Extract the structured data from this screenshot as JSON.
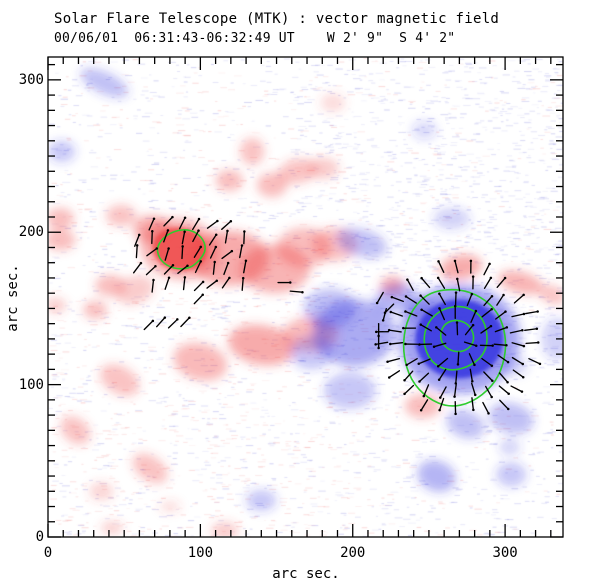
{
  "chart_data": {
    "type": "heatmap",
    "title": "Solar Flare Telescope (MTK) : vector magnetic field",
    "subtitle": "00/06/01  06:31:43-06:32:49 UT    W 2' 9\"  S 4' 2\"",
    "xlabel": "arc sec.",
    "ylabel": "arc sec.",
    "xlim": [
      0,
      338
    ],
    "ylim": [
      0,
      315
    ],
    "xticks": [
      0,
      100,
      200,
      300
    ],
    "yticks": [
      0,
      100,
      200,
      300
    ],
    "minor_tick_step": 10,
    "grid": false,
    "colors": {
      "positive_polarity": "#ee4444",
      "negative_polarity": "#3232e0",
      "contour": "#2ecc2e",
      "vector": "#000000",
      "axis": "#000000",
      "background": "#ffffff",
      "noise_blue": "#8c8ce1",
      "noise_pink": "#f29696"
    },
    "region_format": [
      "x_arcsec",
      "y_arcsec",
      "rx_arcsec",
      "ry_arcsec",
      "rotation_deg",
      "intensity"
    ],
    "positive_regions": [
      [
        86.5,
        189,
        18,
        14,
        -10,
        0.92
      ],
      [
        86.5,
        189,
        26,
        20,
        -10,
        0.45
      ],
      [
        68,
        202,
        12,
        9,
        0,
        0.5
      ],
      [
        48,
        211,
        10,
        7,
        0,
        0.35
      ],
      [
        8,
        209,
        9,
        7,
        0,
        0.4
      ],
      [
        8,
        195,
        10,
        7,
        0,
        0.4
      ],
      [
        119,
        183,
        26,
        18,
        0,
        0.5
      ],
      [
        149,
        176,
        23,
        16,
        0,
        0.45
      ],
      [
        168,
        190,
        18,
        13,
        0,
        0.4
      ],
      [
        188,
        192,
        15,
        11,
        0,
        0.35
      ],
      [
        57,
        162,
        13,
        9,
        20,
        0.3
      ],
      [
        41,
        165,
        10,
        7,
        0,
        0.4
      ],
      [
        31,
        149,
        8,
        6,
        0,
        0.38
      ],
      [
        5,
        152,
        7,
        5,
        0,
        0.3
      ],
      [
        119,
        234,
        9,
        7,
        0,
        0.4
      ],
      [
        134,
        253,
        8,
        9,
        0,
        0.35
      ],
      [
        147,
        231,
        10,
        8,
        0,
        0.4
      ],
      [
        164,
        240,
        13,
        8,
        10,
        0.35
      ],
      [
        181,
        242,
        10,
        7,
        0,
        0.3
      ],
      [
        187,
        285,
        8,
        6,
        0,
        0.22
      ],
      [
        47,
        103,
        14,
        9,
        -30,
        0.35
      ],
      [
        100,
        115,
        18,
        12,
        -15,
        0.42
      ],
      [
        140,
        126,
        22,
        13,
        -10,
        0.5
      ],
      [
        172,
        133,
        18,
        11,
        0,
        0.42
      ],
      [
        18,
        70,
        11,
        8,
        -40,
        0.35
      ],
      [
        67,
        45,
        13,
        8,
        -35,
        0.35
      ],
      [
        35,
        30,
        8,
        6,
        0,
        0.25
      ],
      [
        116,
        4,
        9,
        6,
        0,
        0.3
      ],
      [
        42,
        6,
        7,
        4,
        0,
        0.3
      ],
      [
        80,
        20,
        7,
        4,
        0,
        0.18
      ],
      [
        246,
        86,
        12,
        8,
        0,
        0.4
      ],
      [
        226,
        165,
        8,
        6,
        0,
        0.5
      ],
      [
        271,
        177,
        14,
        8,
        10,
        0.5
      ],
      [
        310,
        167,
        15,
        7,
        -15,
        0.45
      ],
      [
        331,
        159,
        9,
        6,
        -20,
        0.35
      ]
    ],
    "negative_regions": [
      [
        270,
        130,
        40,
        36,
        0,
        0.5
      ],
      [
        270,
        130,
        29,
        26,
        0,
        0.95
      ],
      [
        201,
        134,
        27,
        22,
        0,
        0.45
      ],
      [
        185,
        150,
        17,
        13,
        0,
        0.35
      ],
      [
        228,
        157,
        14,
        9,
        15,
        0.4
      ],
      [
        244,
        149,
        11,
        8,
        0,
        0.32
      ],
      [
        198,
        96,
        17,
        12,
        0,
        0.3
      ],
      [
        173,
        121,
        14,
        11,
        0,
        0.3
      ],
      [
        206,
        193,
        17,
        9,
        -15,
        0.35
      ],
      [
        265,
        209,
        12,
        7,
        0,
        0.25
      ],
      [
        37,
        298,
        17,
        7,
        -25,
        0.35
      ],
      [
        9,
        253,
        9,
        7,
        0,
        0.3
      ],
      [
        247,
        267,
        8,
        6,
        0,
        0.2
      ],
      [
        274,
        74,
        13,
        9,
        -20,
        0.35
      ],
      [
        304,
        78,
        15,
        10,
        -15,
        0.35
      ],
      [
        255,
        40,
        13,
        10,
        -20,
        0.4
      ],
      [
        304,
        41,
        10,
        8,
        0,
        0.3
      ],
      [
        303,
        59,
        7,
        5,
        0,
        0.25
      ],
      [
        140,
        24,
        10,
        7,
        0,
        0.3
      ],
      [
        334,
        130,
        10,
        14,
        0,
        0.25
      ],
      [
        306,
        112,
        9,
        6,
        0,
        0.22
      ]
    ],
    "contour_levels": [
      {
        "name": "left-spot",
        "points": [
          [
            104,
            189
          ],
          [
            101,
            197
          ],
          [
            93,
            202
          ],
          [
            83,
            201
          ],
          [
            75,
            196
          ],
          [
            71,
            189
          ],
          [
            74,
            181
          ],
          [
            82,
            176
          ],
          [
            93,
            176
          ],
          [
            100,
            182
          ]
        ]
      },
      {
        "name": "right-spot-outer",
        "points": [
          [
            301,
            130
          ],
          [
            296,
            147
          ],
          [
            284,
            158
          ],
          [
            269,
            163
          ],
          [
            251,
            161
          ],
          [
            240,
            151
          ],
          [
            234,
            137
          ],
          [
            233,
            120
          ],
          [
            238,
            103
          ],
          [
            249,
            91
          ],
          [
            263,
            85
          ],
          [
            278,
            88
          ],
          [
            292,
            99
          ],
          [
            299,
            113
          ]
        ]
      },
      {
        "name": "right-spot-middle",
        "points": [
          [
            289,
            131
          ],
          [
            285,
            145
          ],
          [
            273,
            152
          ],
          [
            259,
            150
          ],
          [
            249,
            141
          ],
          [
            246,
            128
          ],
          [
            251,
            115
          ],
          [
            262,
            109
          ],
          [
            275,
            111
          ],
          [
            286,
            119
          ]
        ]
      },
      {
        "name": "right-spot-inner",
        "points": [
          [
            280,
            132
          ],
          [
            276,
            140
          ],
          [
            267,
            143
          ],
          [
            259,
            139
          ],
          [
            257,
            130
          ],
          [
            262,
            123
          ],
          [
            271,
            121
          ],
          [
            278,
            125
          ]
        ]
      }
    ],
    "vector_field": {
      "uniform_patch": {
        "x_range": [
          58,
          134
        ],
        "y_range": [
          156,
          214
        ],
        "spacing": 10,
        "angle_deg": 62,
        "jitter_deg": 26,
        "length": 8,
        "mask_ellipse": {
          "cx": 96,
          "cy": 186,
          "rx": 42,
          "ry": 31
        }
      },
      "radial_patch": {
        "cx": 270,
        "cy": 129,
        "r_min": 7,
        "r_max": 52,
        "spacing": 10,
        "jitter_deg": 14,
        "length": 8,
        "x_range": [
          218,
          330
        ],
        "y_range": [
          76,
          184
        ]
      },
      "extra_vectors": [
        {
          "x": 155,
          "y": 167,
          "angle_deg": 0
        },
        {
          "x": 163,
          "y": 161,
          "angle_deg": -5
        },
        {
          "x": 66,
          "y": 139,
          "angle_deg": 45
        },
        {
          "x": 74,
          "y": 141,
          "angle_deg": 48
        },
        {
          "x": 82,
          "y": 140,
          "angle_deg": 44
        },
        {
          "x": 90,
          "y": 141,
          "angle_deg": 46
        },
        {
          "x": 218,
          "y": 157,
          "angle_deg": -120
        },
        {
          "x": 221,
          "y": 146,
          "angle_deg": -105
        },
        {
          "x": 217,
          "y": 136,
          "angle_deg": -90
        },
        {
          "x": 224,
          "y": 150,
          "angle_deg": -135
        },
        {
          "x": 217,
          "y": 128,
          "angle_deg": -90
        }
      ]
    }
  }
}
